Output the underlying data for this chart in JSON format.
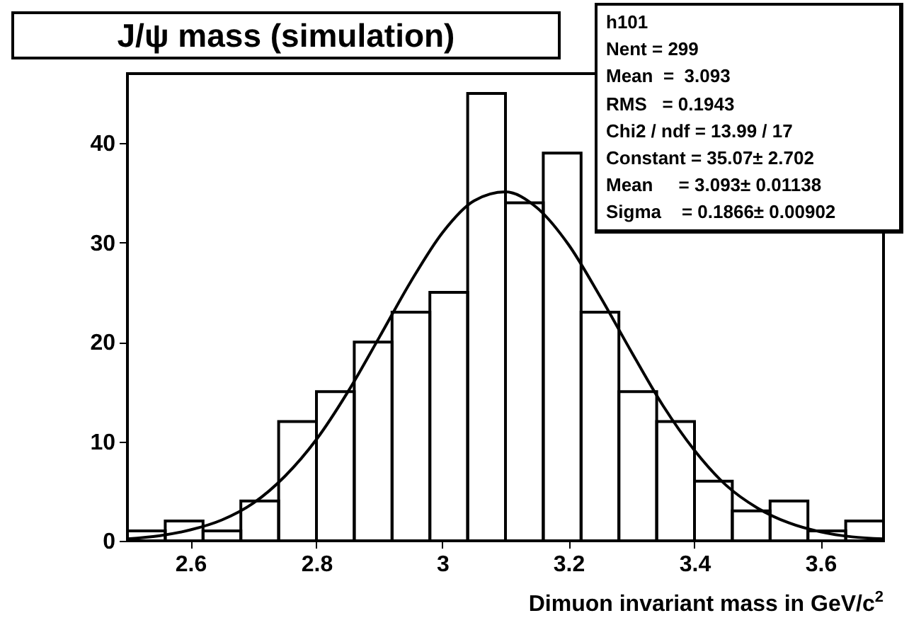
{
  "chart_data": {
    "type": "histogram",
    "title": "J/ψ mass (simulation)",
    "xlabel": "Dimuon invariant mass in GeV/c$^{2}$",
    "bins": [
      2.5,
      2.56,
      2.62,
      2.68,
      2.74,
      2.8,
      2.86,
      2.92,
      2.98,
      3.04,
      3.1,
      3.16,
      3.22,
      3.28,
      3.34,
      3.4,
      3.46,
      3.52,
      3.58,
      3.64,
      3.7
    ],
    "values": [
      1,
      2,
      1,
      4,
      12,
      15,
      20,
      23,
      25,
      45,
      34,
      39,
      23,
      15,
      12,
      6,
      3,
      4,
      1,
      2
    ],
    "color": "#000000",
    "series": [
      {
        "type": "line",
        "color": "#000000",
        "x": [
          2.5,
          2.55,
          2.6,
          2.65,
          2.7,
          2.75,
          2.8,
          2.85,
          2.9,
          2.95,
          3.0,
          3.05,
          3.1,
          3.15,
          3.2,
          3.25,
          3.3,
          3.35,
          3.4,
          3.45,
          3.5,
          3.55,
          3.6,
          3.65,
          3.7
        ],
        "values": [
          0.2,
          0.5,
          1.1,
          2.1,
          3.8,
          6.5,
          10.2,
          15.0,
          20.5,
          26.1,
          31.0,
          34.2,
          35.1,
          33.5,
          29.8,
          24.6,
          19.0,
          13.6,
          9.1,
          5.6,
          3.3,
          1.8,
          0.9,
          0.4,
          0.2
        ]
      }
    ],
    "xlim": [
      2.5,
      3.7
    ],
    "xticks": [
      2.6,
      2.8,
      {
        "value": 3,
        "label": "3"
      },
      3.2,
      3.4,
      3.6
    ],
    "ylim": [
      0,
      47
    ],
    "yticks": [
      0,
      10,
      20,
      30,
      40
    ],
    "grid": false,
    "annotations": [
      "h101",
      "Nent = 299",
      "Mean  =  3.093",
      "RMS   = 0.1943",
      "Chi2 / ndf = 13.99 / 17",
      "Constant = 35.07± 2.702",
      "Mean     = 3.093± 0.01138",
      "Sigma    = 0.1866± 0.00902"
    ]
  }
}
